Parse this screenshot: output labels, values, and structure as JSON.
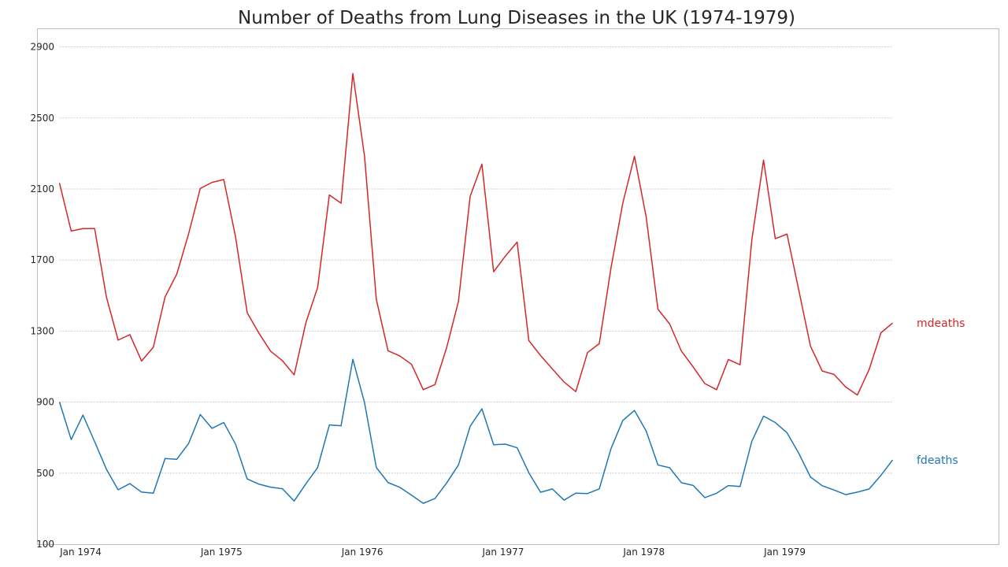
{
  "chart_data": {
    "type": "line",
    "title": "Number of Deaths from Lung Diseases in the UK (1974-1979)",
    "xlabel": "",
    "ylabel": "",
    "ylim": [
      100,
      3000
    ],
    "yticks": [
      100,
      500,
      900,
      1300,
      1700,
      2100,
      2500,
      2900
    ],
    "grid": "horizontal dotted",
    "x_start": "Jan 1974",
    "x_count": 72,
    "xticks": [
      {
        "index": 0,
        "label": "Jan 1974"
      },
      {
        "index": 12,
        "label": "Jan 1975"
      },
      {
        "index": 24,
        "label": "Jan 1976"
      },
      {
        "index": 36,
        "label": "Jan 1977"
      },
      {
        "index": 48,
        "label": "Jan 1978"
      },
      {
        "index": 60,
        "label": "Jan 1979"
      }
    ],
    "series": [
      {
        "name": "mdeaths",
        "color": "#d62728",
        "values": [
          2134,
          1863,
          1877,
          1877,
          1492,
          1249,
          1280,
          1131,
          1209,
          1492,
          1621,
          1846,
          2103,
          2137,
          2153,
          1833,
          1403,
          1288,
          1186,
          1133,
          1053,
          1347,
          1545,
          2066,
          2020,
          2750,
          2283,
          1479,
          1189,
          1160,
          1113,
          970,
          999,
          1208,
          1467,
          2059,
          2240,
          1634,
          1722,
          1801,
          1246,
          1162,
          1087,
          1013,
          959,
          1179,
          1229,
          1655,
          2019,
          2284,
          1942,
          1423,
          1340,
          1187,
          1098,
          1004,
          970,
          1140,
          1110,
          1812,
          2263,
          1820,
          1846,
          1531,
          1215,
          1075,
          1056,
          985,
          940,
          1084,
          1290,
          1345
        ]
      },
      {
        "name": "fdeaths",
        "color": "#1f77b4",
        "values": [
          901,
          689,
          827,
          677,
          522,
          406,
          441,
          393,
          387,
          582,
          578,
          666,
          830,
          752,
          785,
          664,
          467,
          438,
          421,
          412,
          343,
          440,
          531,
          771,
          767,
          1141,
          896,
          532,
          447,
          420,
          376,
          330,
          357,
          445,
          546,
          764,
          862,
          660,
          663,
          643,
          502,
          392,
          411,
          348,
          387,
          385,
          411,
          638,
          796,
          853,
          737,
          546,
          530,
          446,
          431,
          362,
          387,
          430,
          425,
          679,
          821,
          785,
          727,
          612,
          478,
          429,
          405,
          379,
          393,
          411,
          487,
          574
        ]
      }
    ]
  }
}
